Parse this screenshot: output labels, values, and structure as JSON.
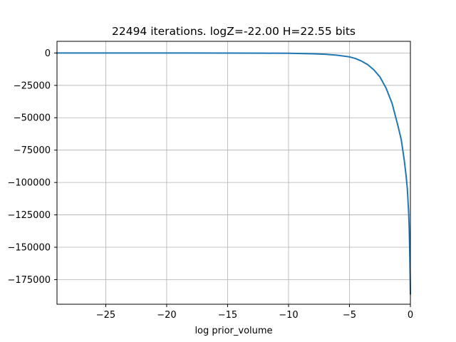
{
  "chart_data": {
    "type": "line",
    "title": "22494 iterations. logZ=-22.00 H=22.55 bits",
    "xlabel": "log prior_volume",
    "ylabel": "",
    "xlim": [
      -29,
      0
    ],
    "ylim": [
      -194000,
      9000
    ],
    "grid": true,
    "x_ticks": [
      {
        "value": -25,
        "label": "−25"
      },
      {
        "value": -20,
        "label": "−20"
      },
      {
        "value": -15,
        "label": "−15"
      },
      {
        "value": -10,
        "label": "−10"
      },
      {
        "value": -5,
        "label": "−5"
      },
      {
        "value": 0,
        "label": "0"
      }
    ],
    "y_ticks": [
      {
        "value": 0,
        "label": "0"
      },
      {
        "value": -25000,
        "label": "−25000"
      },
      {
        "value": -50000,
        "label": "−50000"
      },
      {
        "value": -75000,
        "label": "−75000"
      },
      {
        "value": -100000,
        "label": "−100000"
      },
      {
        "value": -125000,
        "label": "−125000"
      },
      {
        "value": -150000,
        "label": "−150000"
      },
      {
        "value": -175000,
        "label": "−175000"
      }
    ],
    "series": [
      {
        "color": "#1f77b4",
        "x": [
          -29,
          -25,
          -20,
          -15,
          -12,
          -10,
          -9,
          -8,
          -7,
          -6,
          -5,
          -4.5,
          -4,
          -3.5,
          -3,
          -2.5,
          -2,
          -1.5,
          -1,
          -0.75,
          -0.5,
          -0.35,
          -0.25,
          -0.15,
          -0.1,
          -0.05,
          -0.02,
          0
        ],
        "y": [
          0,
          0,
          -20,
          -80,
          -150,
          -250,
          -400,
          -650,
          -1000,
          -1700,
          -3000,
          -4300,
          -6300,
          -9000,
          -13000,
          -18500,
          -27000,
          -39000,
          -57000,
          -67000,
          -83000,
          -95000,
          -105000,
          -122000,
          -135000,
          -155000,
          -172000,
          -186000
        ]
      }
    ]
  }
}
